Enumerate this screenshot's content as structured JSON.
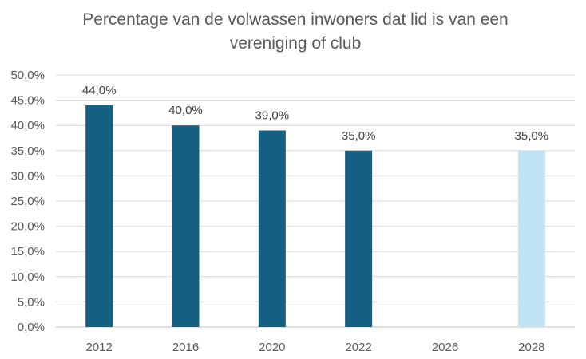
{
  "chart_data": {
    "type": "bar",
    "title_lines": [
      "Percentage van de volwassen inwoners dat lid is van een",
      "vereniging of club"
    ],
    "categories": [
      "2012",
      "2016",
      "2020",
      "2022",
      "2026",
      "2028"
    ],
    "values": [
      44.0,
      40.0,
      39.0,
      35.0,
      null,
      35.0
    ],
    "data_labels": [
      "44,0%",
      "40,0%",
      "39,0%",
      "35,0%",
      "",
      "35,0%"
    ],
    "bar_colors": [
      "#155f82",
      "#155f82",
      "#155f82",
      "#155f82",
      "#155f82",
      "#c0e4f5"
    ],
    "ylim": [
      0,
      50
    ],
    "y_ticks": [
      0,
      5,
      10,
      15,
      20,
      25,
      30,
      35,
      40,
      45,
      50
    ],
    "y_tick_labels": [
      "0,0%",
      "5,0%",
      "10,0%",
      "15,0%",
      "20,0%",
      "25,0%",
      "30,0%",
      "35,0%",
      "40,0%",
      "45,0%",
      "50,0%"
    ],
    "grid": true,
    "legend": "none",
    "xlabel": "",
    "ylabel": ""
  }
}
